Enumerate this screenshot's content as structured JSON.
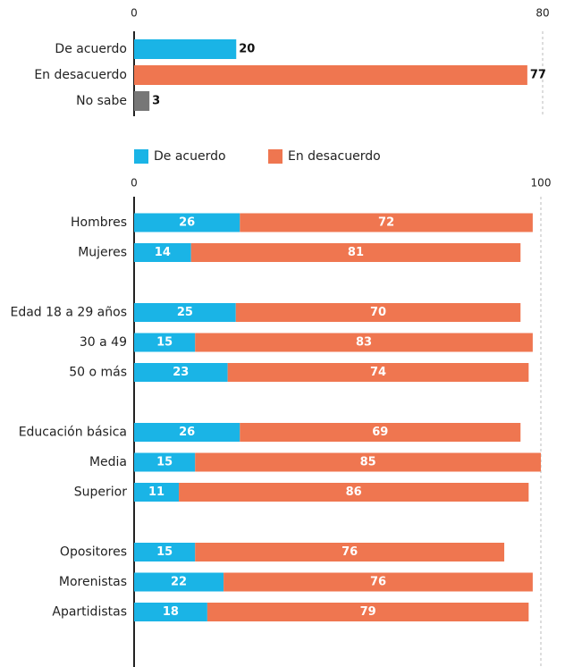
{
  "chart_data": [
    {
      "type": "bar",
      "categories": [
        "De acuerdo",
        "En desacuerdo",
        "No sabe"
      ],
      "values": [
        20,
        77,
        3
      ],
      "colors": [
        "#1ab4e6",
        "#ef7650",
        "#777777"
      ],
      "xlim": [
        0,
        80
      ],
      "xticks": [
        0,
        80
      ],
      "grid": true
    },
    {
      "type": "stacked_bar",
      "categories": [
        "Hombres",
        "Mujeres",
        null,
        "Edad 18 a 29 años",
        "30 a 49",
        "50 o más",
        null,
        "Educación básica",
        "Media",
        "Superior",
        null,
        "Opositores",
        "Morenistas",
        "Apartidistas"
      ],
      "series": [
        {
          "name": "De acuerdo",
          "color": "#1ab4e6",
          "values": [
            26,
            14,
            null,
            25,
            15,
            23,
            null,
            26,
            15,
            11,
            null,
            15,
            22,
            18
          ]
        },
        {
          "name": "En desacuerdo",
          "color": "#ef7650",
          "values": [
            72,
            81,
            null,
            70,
            83,
            74,
            null,
            69,
            85,
            86,
            null,
            76,
            76,
            79
          ]
        }
      ],
      "xlim": [
        0,
        100
      ],
      "xticks": [
        0,
        100
      ],
      "grid": true
    }
  ]
}
